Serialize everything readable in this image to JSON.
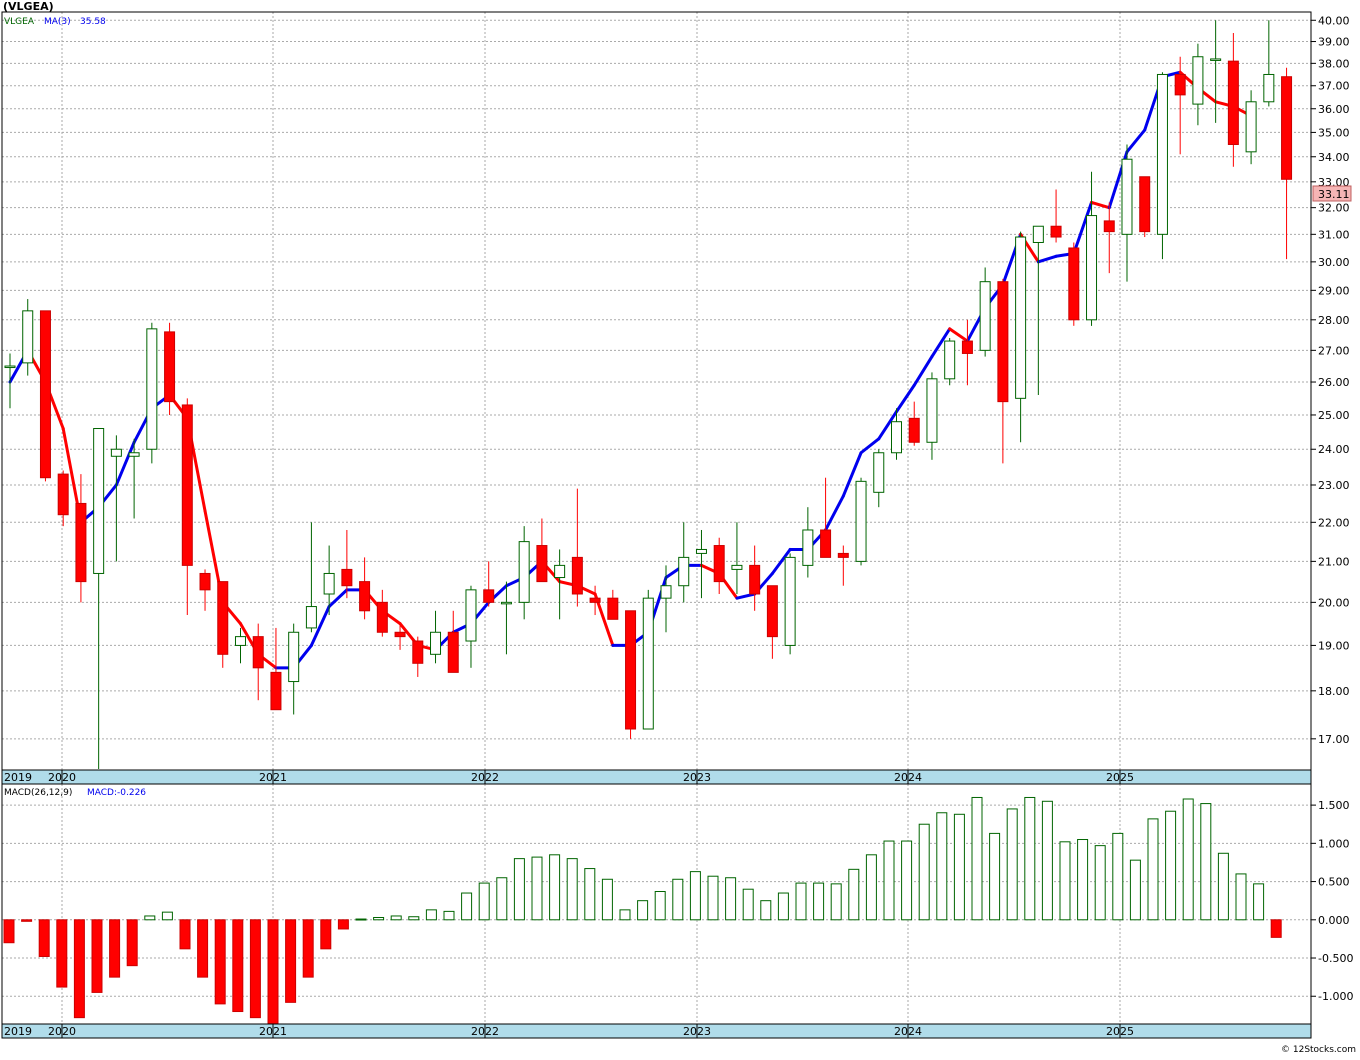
{
  "header": {
    "title": "(VLGEA)",
    "legend_symbol": "VLGEA",
    "legend_ma": "MA(3)",
    "legend_ma_value": "35.58"
  },
  "macd_header": {
    "label": "MACD(26,12,9)",
    "value": "MACD:-0.226"
  },
  "watermark": "© 12Stocks.com",
  "colors": {
    "up": "#006400",
    "down": "#ff0000",
    "ma_up": "#0000ee",
    "ma_down": "#ff0000",
    "axis_strip": "#b0dcea",
    "grid": "#aaaaaa",
    "last_price_box": "#f5b5b5"
  },
  "chart_data": [
    {
      "type": "candlestick",
      "title": "(VLGEA)",
      "period": "monthly",
      "y_scale": "log",
      "ylim": [
        16.4,
        40.3
      ],
      "yticks": [
        "17.00",
        "18.00",
        "19.00",
        "20.00",
        "21.00",
        "22.00",
        "23.00",
        "24.00",
        "25.00",
        "26.00",
        "27.00",
        "28.00",
        "29.00",
        "30.00",
        "31.00",
        "32.00",
        "33.00",
        "34.00",
        "35.00",
        "36.00",
        "37.00",
        "38.00",
        "39.00",
        "40.00"
      ],
      "x_labels": [
        "2019",
        "2020",
        "2021",
        "2022",
        "2023",
        "2024",
        "2025"
      ],
      "last_price": "33.11",
      "grid": true,
      "series": [
        {
          "name": "VLGEA",
          "ohlc": [
            {
              "date": "2019-10",
              "o": 26.5,
              "h": 26.9,
              "l": 25.2,
              "c": 26.5
            },
            {
              "date": "2019-11",
              "o": 26.6,
              "h": 28.7,
              "l": 26.2,
              "c": 28.3
            },
            {
              "date": "2019-12",
              "o": 28.3,
              "h": 28.3,
              "l": 23.1,
              "c": 23.2
            },
            {
              "date": "2020-01",
              "o": 23.3,
              "h": 23.4,
              "l": 21.9,
              "c": 22.2
            },
            {
              "date": "2020-02",
              "o": 22.5,
              "h": 23.3,
              "l": 20.0,
              "c": 20.5
            },
            {
              "date": "2020-03",
              "o": 20.7,
              "h": 24.6,
              "l": 16.4,
              "c": 24.6
            },
            {
              "date": "2020-04",
              "o": 23.8,
              "h": 24.4,
              "l": 21.0,
              "c": 24.0
            },
            {
              "date": "2020-05",
              "o": 23.8,
              "h": 24.3,
              "l": 22.1,
              "c": 23.9
            },
            {
              "date": "2020-06",
              "o": 24.0,
              "h": 27.9,
              "l": 23.6,
              "c": 27.7
            },
            {
              "date": "2020-07",
              "o": 27.6,
              "h": 27.9,
              "l": 25.0,
              "c": 25.4
            },
            {
              "date": "2020-08",
              "o": 25.3,
              "h": 25.5,
              "l": 19.7,
              "c": 20.9
            },
            {
              "date": "2020-09",
              "o": 20.7,
              "h": 20.8,
              "l": 19.8,
              "c": 20.3
            },
            {
              "date": "2020-10",
              "o": 20.5,
              "h": 20.5,
              "l": 18.5,
              "c": 18.8
            },
            {
              "date": "2020-11",
              "o": 19.0,
              "h": 19.4,
              "l": 18.6,
              "c": 19.2
            },
            {
              "date": "2020-12",
              "o": 19.2,
              "h": 19.5,
              "l": 17.8,
              "c": 18.5
            },
            {
              "date": "2021-01",
              "o": 18.4,
              "h": 19.4,
              "l": 17.6,
              "c": 17.6
            },
            {
              "date": "2021-02",
              "o": 18.2,
              "h": 19.5,
              "l": 17.5,
              "c": 19.3
            },
            {
              "date": "2021-03",
              "o": 19.4,
              "h": 22.0,
              "l": 19.3,
              "c": 19.9
            },
            {
              "date": "2021-04",
              "o": 20.2,
              "h": 21.4,
              "l": 19.7,
              "c": 20.7
            },
            {
              "date": "2021-05",
              "o": 20.8,
              "h": 21.8,
              "l": 20.1,
              "c": 20.4
            },
            {
              "date": "2021-06",
              "o": 20.5,
              "h": 21.1,
              "l": 19.6,
              "c": 19.8
            },
            {
              "date": "2021-07",
              "o": 20.0,
              "h": 20.3,
              "l": 19.2,
              "c": 19.3
            },
            {
              "date": "2021-08",
              "o": 19.3,
              "h": 19.5,
              "l": 18.9,
              "c": 19.2
            },
            {
              "date": "2021-09",
              "o": 19.1,
              "h": 19.2,
              "l": 18.3,
              "c": 18.6
            },
            {
              "date": "2021-10",
              "o": 18.8,
              "h": 19.8,
              "l": 18.6,
              "c": 19.3
            },
            {
              "date": "2021-11",
              "o": 19.3,
              "h": 19.8,
              "l": 18.4,
              "c": 18.4
            },
            {
              "date": "2021-12",
              "o": 19.1,
              "h": 20.4,
              "l": 18.5,
              "c": 20.3
            },
            {
              "date": "2022-01",
              "o": 20.3,
              "h": 21.0,
              "l": 19.9,
              "c": 20.0
            },
            {
              "date": "2022-02",
              "o": 20.0,
              "h": 20.5,
              "l": 18.8,
              "c": 20.0
            },
            {
              "date": "2022-03",
              "o": 20.0,
              "h": 21.9,
              "l": 19.6,
              "c": 21.5
            },
            {
              "date": "2022-04",
              "o": 21.4,
              "h": 22.1,
              "l": 20.5,
              "c": 20.5
            },
            {
              "date": "2022-05",
              "o": 20.6,
              "h": 21.3,
              "l": 19.6,
              "c": 20.9
            },
            {
              "date": "2022-06",
              "o": 21.1,
              "h": 22.9,
              "l": 19.9,
              "c": 20.2
            },
            {
              "date": "2022-07",
              "o": 20.1,
              "h": 20.4,
              "l": 19.7,
              "c": 20.0
            },
            {
              "date": "2022-08",
              "o": 20.1,
              "h": 20.3,
              "l": 19.6,
              "c": 19.6
            },
            {
              "date": "2022-09",
              "o": 19.8,
              "h": 19.8,
              "l": 17.0,
              "c": 17.2
            },
            {
              "date": "2022-10",
              "o": 17.2,
              "h": 20.3,
              "l": 17.2,
              "c": 20.1
            },
            {
              "date": "2022-11",
              "o": 20.1,
              "h": 20.9,
              "l": 19.3,
              "c": 20.4
            },
            {
              "date": "2022-12",
              "o": 20.4,
              "h": 22.0,
              "l": 20.0,
              "c": 21.1
            },
            {
              "date": "2023-01",
              "o": 21.2,
              "h": 21.8,
              "l": 20.1,
              "c": 21.3
            },
            {
              "date": "2023-02",
              "o": 21.4,
              "h": 21.6,
              "l": 20.2,
              "c": 20.5
            },
            {
              "date": "2023-03",
              "o": 20.8,
              "h": 22.0,
              "l": 20.2,
              "c": 20.9
            },
            {
              "date": "2023-04",
              "o": 20.9,
              "h": 21.4,
              "l": 19.8,
              "c": 20.2
            },
            {
              "date": "2023-05",
              "o": 20.4,
              "h": 20.4,
              "l": 18.7,
              "c": 19.2
            },
            {
              "date": "2023-06",
              "o": 19.0,
              "h": 21.2,
              "l": 18.8,
              "c": 21.1
            },
            {
              "date": "2023-07",
              "o": 20.9,
              "h": 22.4,
              "l": 20.6,
              "c": 21.8
            },
            {
              "date": "2023-08",
              "o": 21.8,
              "h": 23.2,
              "l": 21.1,
              "c": 21.1
            },
            {
              "date": "2023-09",
              "o": 21.2,
              "h": 21.4,
              "l": 20.4,
              "c": 21.1
            },
            {
              "date": "2023-10",
              "o": 21.0,
              "h": 23.2,
              "l": 20.9,
              "c": 23.1
            },
            {
              "date": "2023-11",
              "o": 22.8,
              "h": 24.0,
              "l": 22.4,
              "c": 23.9
            },
            {
              "date": "2023-12",
              "o": 23.9,
              "h": 25.2,
              "l": 23.7,
              "c": 24.8
            },
            {
              "date": "2024-01",
              "o": 24.9,
              "h": 25.4,
              "l": 24.1,
              "c": 24.2
            },
            {
              "date": "2024-02",
              "o": 24.2,
              "h": 26.3,
              "l": 23.7,
              "c": 26.1
            },
            {
              "date": "2024-03",
              "o": 26.1,
              "h": 27.4,
              "l": 25.9,
              "c": 27.3
            },
            {
              "date": "2024-04",
              "o": 27.3,
              "h": 28.0,
              "l": 25.9,
              "c": 26.9
            },
            {
              "date": "2024-05",
              "o": 27.0,
              "h": 29.8,
              "l": 26.8,
              "c": 29.3
            },
            {
              "date": "2024-06",
              "o": 29.3,
              "h": 29.4,
              "l": 23.6,
              "c": 25.4
            },
            {
              "date": "2024-07",
              "o": 25.5,
              "h": 31.1,
              "l": 24.2,
              "c": 30.9
            },
            {
              "date": "2024-08",
              "o": 30.7,
              "h": 31.3,
              "l": 25.6,
              "c": 31.3
            },
            {
              "date": "2024-09",
              "o": 31.3,
              "h": 32.7,
              "l": 30.7,
              "c": 30.9
            },
            {
              "date": "2024-10",
              "o": 30.5,
              "h": 30.7,
              "l": 27.8,
              "c": 28.0
            },
            {
              "date": "2024-11",
              "o": 28.0,
              "h": 33.4,
              "l": 27.8,
              "c": 31.7
            },
            {
              "date": "2024-12",
              "o": 31.5,
              "h": 32.2,
              "l": 29.6,
              "c": 31.1
            },
            {
              "date": "2025-01",
              "o": 31.0,
              "h": 34.5,
              "l": 29.3,
              "c": 33.9
            },
            {
              "date": "2025-02",
              "o": 33.2,
              "h": 33.2,
              "l": 30.9,
              "c": 31.1
            },
            {
              "date": "2025-03",
              "o": 31.0,
              "h": 37.6,
              "l": 30.1,
              "c": 37.5
            },
            {
              "date": "2025-04",
              "o": 37.5,
              "h": 38.3,
              "l": 34.1,
              "c": 36.6
            },
            {
              "date": "2025-05",
              "o": 36.2,
              "h": 38.9,
              "l": 35.3,
              "c": 38.3
            },
            {
              "date": "2025-06",
              "o": 38.2,
              "h": 40.0,
              "l": 35.4,
              "c": 38.2
            },
            {
              "date": "2025-07",
              "o": 38.1,
              "h": 39.4,
              "l": 33.6,
              "c": 34.5
            },
            {
              "date": "2025-08",
              "o": 34.2,
              "h": 36.8,
              "l": 33.7,
              "c": 36.3
            },
            {
              "date": "2025-09",
              "o": 36.3,
              "h": 40.0,
              "l": 36.1,
              "c": 37.5
            },
            {
              "date": "2025-10",
              "o": 37.4,
              "h": 37.8,
              "l": 30.1,
              "c": 33.1
            }
          ]
        },
        {
          "name": "MA(3)",
          "values": [
            26.0,
            27.0,
            26.0,
            24.6,
            22.0,
            22.4,
            23.0,
            24.2,
            25.2,
            25.6,
            24.9,
            22.3,
            20.0,
            19.5,
            18.8,
            18.5,
            18.5,
            19.0,
            19.9,
            20.3,
            20.3,
            19.8,
            19.5,
            19.0,
            18.9,
            19.3,
            19.5,
            20.0,
            20.4,
            20.6,
            21.0,
            20.5,
            20.4,
            20.2,
            19.0,
            19.0,
            19.3,
            20.6,
            20.9,
            20.9,
            20.7,
            20.1,
            20.2,
            20.7,
            21.3,
            21.3,
            21.8,
            22.7,
            23.9,
            24.3,
            25.1,
            25.9,
            26.8,
            27.7,
            27.3,
            28.4,
            29.2,
            31.0,
            30.0,
            30.2,
            30.3,
            32.2,
            32.0,
            34.2,
            35.1,
            37.4,
            37.6,
            36.9,
            36.3,
            36.1,
            35.7
          ]
        }
      ]
    },
    {
      "type": "bar",
      "title": "MACD(26,12,9)",
      "ylim": [
        -1.35,
        1.75
      ],
      "yticks": [
        "-1.000",
        "-0.500",
        "0.000",
        "0.500",
        "1.000",
        "1.500"
      ],
      "x_labels": [
        "2019",
        "2020",
        "2021",
        "2022",
        "2023",
        "2024",
        "2025"
      ],
      "series": [
        {
          "name": "MACD",
          "values": [
            -0.3,
            -0.02,
            -0.48,
            -0.88,
            -1.28,
            -0.95,
            -0.75,
            -0.6,
            0.05,
            0.1,
            -0.38,
            -0.75,
            -1.1,
            -1.2,
            -1.28,
            -1.4,
            -1.08,
            -0.75,
            -0.38,
            -0.12,
            0.01,
            0.03,
            0.05,
            0.04,
            0.13,
            0.11,
            0.35,
            0.48,
            0.55,
            0.8,
            0.82,
            0.85,
            0.8,
            0.67,
            0.53,
            0.13,
            0.25,
            0.37,
            0.53,
            0.63,
            0.57,
            0.55,
            0.4,
            0.25,
            0.35,
            0.48,
            0.48,
            0.47,
            0.66,
            0.85,
            1.03,
            1.03,
            1.25,
            1.4,
            1.38,
            1.6,
            1.13,
            1.45,
            1.6,
            1.55,
            1.02,
            1.05,
            0.97,
            1.13,
            0.78,
            1.32,
            1.42,
            1.58,
            1.52,
            0.87,
            0.6,
            0.47,
            -0.23
          ]
        }
      ]
    }
  ]
}
